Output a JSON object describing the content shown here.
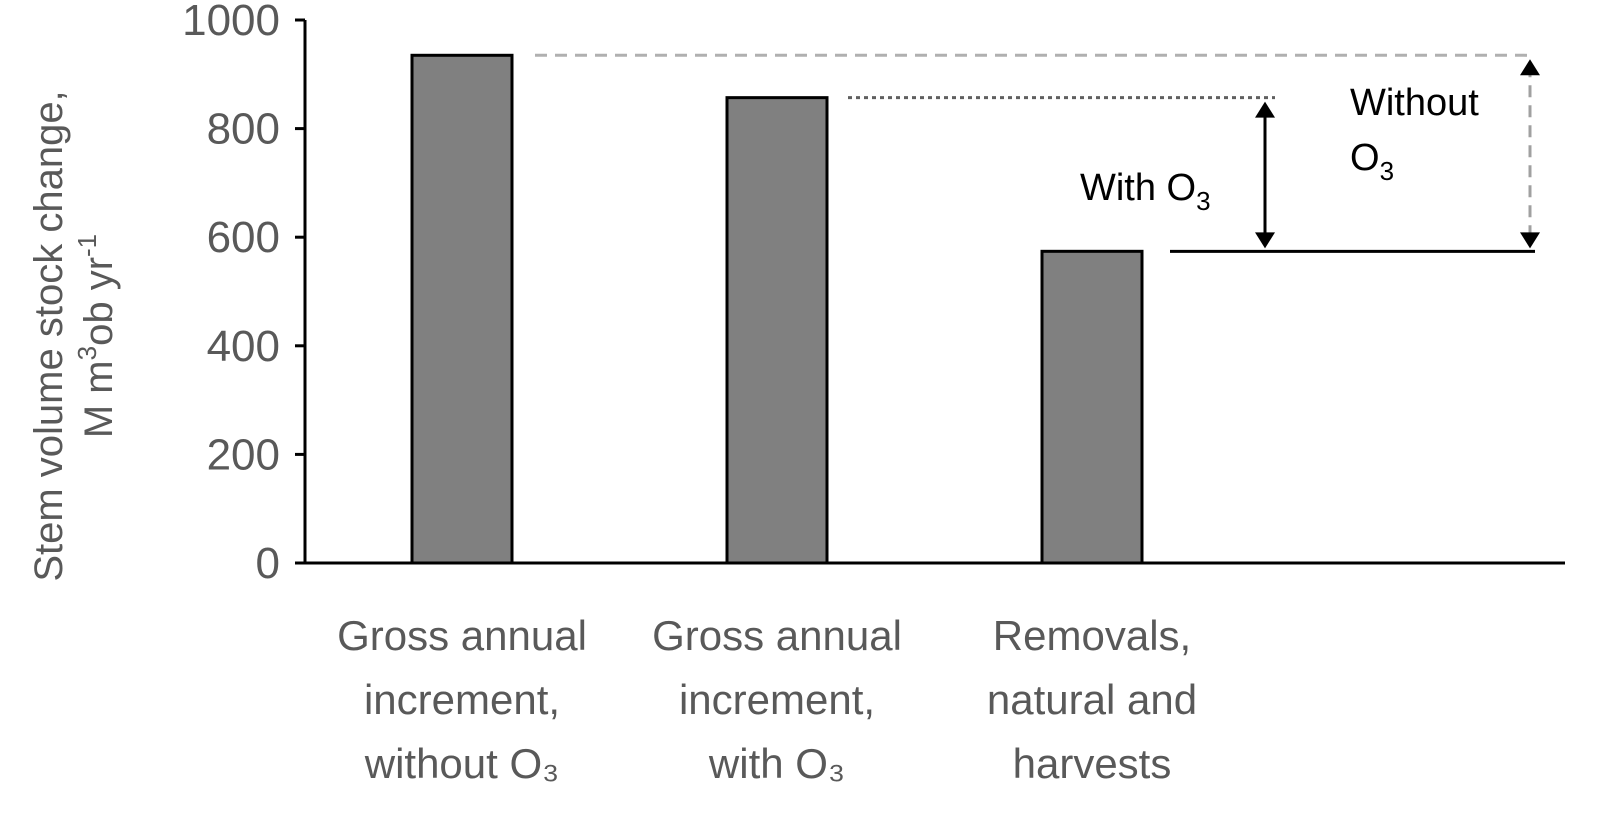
{
  "chart_data": {
    "type": "bar",
    "categories": [
      [
        "Gross annual",
        "increment,",
        "without O₃"
      ],
      [
        "Gross annual",
        "increment,",
        "with O₃"
      ],
      [
        "Removals,",
        "natural and",
        "harvests"
      ]
    ],
    "values": [
      935,
      857,
      574
    ],
    "ylim": [
      0,
      1000
    ],
    "yticks": [
      0,
      200,
      400,
      600,
      800,
      1000
    ],
    "ylabel": {
      "line1": "Stem volume stock change,",
      "line2_prefix": "M m",
      "line2_sup1": "3",
      "line2_mid": "ob yr",
      "line2_sup2": "-1"
    },
    "bar_color": "#808080",
    "annotations": {
      "with_o3": {
        "text": "With O",
        "sub": "3",
        "from": 574,
        "to": 857
      },
      "without_o3": {
        "line1": "Without",
        "line2": "O",
        "sub": "3",
        "from": 574,
        "to": 935
      }
    },
    "grid": false,
    "legend": "none"
  }
}
